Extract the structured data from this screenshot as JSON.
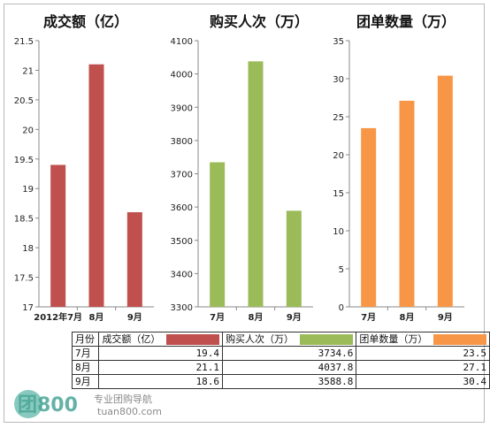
{
  "chart_data": [
    {
      "type": "bar",
      "title": "成交额（亿）",
      "categories": [
        "7月",
        "8月",
        "9月"
      ],
      "category_labels_shown": [
        "2012年7月",
        "8月",
        "9月"
      ],
      "values": [
        19.4,
        21.1,
        18.6
      ],
      "ylim": [
        17,
        21.5
      ],
      "yticks": [
        "17",
        "17.5",
        "18",
        "18.5",
        "19",
        "19.5",
        "20",
        "20.5",
        "21",
        "21.5"
      ],
      "color": "#c0504d",
      "grid": false
    },
    {
      "type": "bar",
      "title": "购买人次（万）",
      "categories": [
        "7月",
        "8月",
        "9月"
      ],
      "category_labels_shown": [
        "7月",
        "8月",
        "9月"
      ],
      "values": [
        3734.6,
        4037.8,
        3588.8
      ],
      "ylim": [
        3300,
        4100
      ],
      "yticks": [
        "3300",
        "3400",
        "3500",
        "3600",
        "3700",
        "3800",
        "3900",
        "4000",
        "4100"
      ],
      "color": "#9bbb59",
      "grid": false
    },
    {
      "type": "bar",
      "title": "团单数量（万）",
      "categories": [
        "7月",
        "8月",
        "9月"
      ],
      "category_labels_shown": [
        "7月",
        "8月",
        "9月"
      ],
      "values": [
        23.5,
        27.1,
        30.4
      ],
      "ylim": [
        0,
        35
      ],
      "yticks": [
        "0",
        "5",
        "10",
        "15",
        "20",
        "25",
        "30",
        "35"
      ],
      "color": "#f79646",
      "grid": false
    }
  ],
  "table": {
    "header": [
      "月份",
      "成交额（亿）",
      "购买人次（万）",
      "团单数量（万）"
    ],
    "rows": [
      [
        "7月",
        "19.4",
        "3734.6",
        "23.5"
      ],
      [
        "8月",
        "21.1",
        "4037.8",
        "27.1"
      ],
      [
        "9月",
        "18.6",
        "3588.8",
        "30.4"
      ]
    ]
  },
  "logo": {
    "mark": "团800",
    "line1": "专业团购导航",
    "line2": "tuan800.com"
  }
}
